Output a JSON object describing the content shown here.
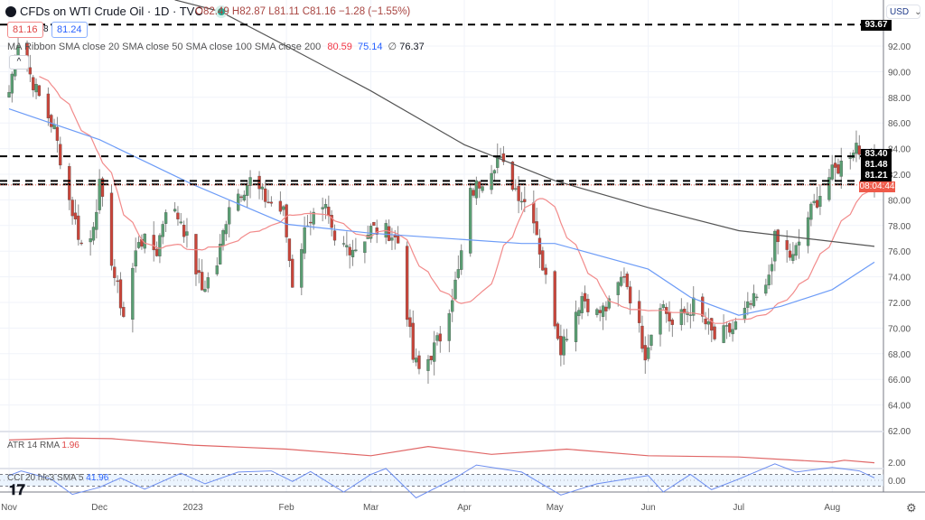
{
  "header": {
    "title": "CFDs on WTI Crude Oil · 1D · TVC",
    "ohlc": "O82.49 H82.87 L81.11 C81.16 −1.28 (−1.55%)",
    "bid": "81.16",
    "spread": "8",
    "ask": "81.24",
    "currency": "USD",
    "collapse_glyph": "^"
  },
  "indicators": {
    "ma_ribbon_label": "MA Ribbon SMA close 20 SMA close 50 SMA close 100 SMA close 200",
    "sma20_value": "80.59",
    "sma50_value": "75.14",
    "sma100_value": "∅",
    "sma200_value": "76.37",
    "atr_label": "ATR 14 RMA",
    "atr_value": "1.96",
    "cci_label": "CCI 20 hlc3 SMA 5",
    "cci_value": "41.96"
  },
  "price_axis": {
    "ticks": [
      "92.00",
      "90.00",
      "88.00",
      "86.00",
      "84.00",
      "82.00",
      "80.00",
      "78.00",
      "76.00",
      "74.00",
      "72.00",
      "70.00",
      "68.00",
      "66.00",
      "64.00",
      "62.00"
    ],
    "line_labels": [
      "93.67",
      "83.40",
      "81.48",
      "81.21"
    ],
    "countdown": "08:04:44",
    "atr_tick": "2.00",
    "cci_tick": "0.00"
  },
  "time_axis": {
    "labels": [
      "Nov",
      "Dec",
      "2023",
      "Feb",
      "Mar",
      "Apr",
      "May",
      "Jun",
      "Jul",
      "Aug"
    ]
  },
  "colors": {
    "up": "#5a9e73",
    "down": "#c9453a",
    "sma20": "#f28b8b",
    "sma50": "#6d9cf7",
    "sma200": "#555555",
    "atr": "#e06666",
    "cci": "#6d8ef0",
    "countdown_bg": "#ef5a4a"
  },
  "logo_text": "TV",
  "chart_data": {
    "type": "candlestick",
    "horizontal_lines": [
      93.67,
      83.4,
      81.48,
      81.21
    ],
    "ylim": [
      62,
      95.5
    ],
    "closes": [
      [
        "2022-11-01",
        88.4
      ],
      [
        "2022-11-04",
        92.4
      ],
      [
        "2022-11-10",
        88.5
      ],
      [
        "2022-11-16",
        85.5
      ],
      [
        "2022-11-21",
        80
      ],
      [
        "2022-11-25",
        76.5
      ],
      [
        "2022-11-28",
        77
      ],
      [
        "2022-12-01",
        81
      ],
      [
        "2022-12-06",
        74
      ],
      [
        "2022-12-09",
        71
      ],
      [
        "2022-12-14",
        77
      ],
      [
        "2022-12-20",
        76
      ],
      [
        "2022-12-23",
        79.5
      ],
      [
        "2022-12-28",
        78.5
      ],
      [
        "2023-01-04",
        73
      ],
      [
        "2023-01-09",
        75
      ],
      [
        "2023-01-13",
        79.8
      ],
      [
        "2023-01-20",
        81.5
      ],
      [
        "2023-01-25",
        80.1
      ],
      [
        "2023-01-31",
        79
      ],
      [
        "2023-02-03",
        73.5
      ],
      [
        "2023-02-08",
        78.5
      ],
      [
        "2023-02-14",
        79
      ],
      [
        "2023-02-17",
        76.5
      ],
      [
        "2023-02-24",
        76.3
      ],
      [
        "2023-03-01",
        77.7
      ],
      [
        "2023-03-07",
        77.5
      ],
      [
        "2023-03-10",
        76.7
      ],
      [
        "2023-03-15",
        67.6
      ],
      [
        "2023-03-17",
        66.7
      ],
      [
        "2023-03-20",
        67.6
      ],
      [
        "2023-03-24",
        69.3
      ],
      [
        "2023-03-30",
        74.3
      ],
      [
        "2023-04-03",
        80.4
      ],
      [
        "2023-04-12",
        83.3
      ],
      [
        "2023-04-18",
        80.9
      ],
      [
        "2023-04-24",
        78.8
      ],
      [
        "2023-04-27",
        74.8
      ],
      [
        "2023-05-03",
        68.6
      ],
      [
        "2023-05-10",
        72.5
      ],
      [
        "2023-05-15",
        71.1
      ],
      [
        "2023-05-19",
        71.7
      ],
      [
        "2023-05-24",
        74.3
      ],
      [
        "2023-05-31",
        68.1
      ],
      [
        "2023-06-05",
        72.2
      ],
      [
        "2023-06-09",
        70.2
      ],
      [
        "2023-06-16",
        71.8
      ],
      [
        "2023-06-23",
        69.2
      ],
      [
        "2023-06-29",
        69.9
      ],
      [
        "2023-07-05",
        71.8
      ],
      [
        "2023-07-10",
        72.9
      ],
      [
        "2023-07-13",
        76.9
      ],
      [
        "2023-07-19",
        75.4
      ],
      [
        "2023-07-24",
        78.7
      ],
      [
        "2023-07-31",
        81.8
      ],
      [
        "2023-08-04",
        82.8
      ],
      [
        "2023-08-09",
        84.4
      ],
      [
        "2023-08-11",
        83.2
      ],
      [
        "2023-08-14",
        82.5
      ],
      [
        "2023-08-15",
        81.16
      ]
    ],
    "sma50": [
      [
        "2022-11-01",
        87.1
      ],
      [
        "2022-12-01",
        84.7
      ],
      [
        "2023-01-01",
        81.2
      ],
      [
        "2023-02-01",
        78.1
      ],
      [
        "2023-03-01",
        77.4
      ],
      [
        "2023-04-01",
        76.9
      ],
      [
        "2023-04-20",
        76.6
      ],
      [
        "2023-05-01",
        76.6
      ],
      [
        "2023-06-01",
        74.6
      ],
      [
        "2023-06-15",
        72.4
      ],
      [
        "2023-07-01",
        71.0
      ],
      [
        "2023-07-15",
        71.7
      ],
      [
        "2023-08-01",
        73.0
      ],
      [
        "2023-08-15",
        75.14
      ]
    ],
    "sma200": [
      [
        "2022-12-26",
        95.6
      ],
      [
        "2023-01-10",
        94.7
      ],
      [
        "2023-02-01",
        92.0
      ],
      [
        "2023-03-01",
        88.5
      ],
      [
        "2023-04-01",
        84.3
      ],
      [
        "2023-05-01",
        81.5
      ],
      [
        "2023-06-01",
        79.4
      ],
      [
        "2023-07-01",
        77.6
      ],
      [
        "2023-08-15",
        76.37
      ]
    ],
    "atr": [
      [
        "2022-11-01",
        3.7
      ],
      [
        "2022-11-20",
        3.85
      ],
      [
        "2022-12-05",
        3.8
      ],
      [
        "2023-01-01",
        3.3
      ],
      [
        "2023-02-01",
        3.0
      ],
      [
        "2023-03-01",
        2.5
      ],
      [
        "2023-03-20",
        3.2
      ],
      [
        "2023-04-10",
        2.6
      ],
      [
        "2023-05-05",
        3.0
      ],
      [
        "2023-06-01",
        2.5
      ],
      [
        "2023-07-01",
        2.4
      ],
      [
        "2023-08-01",
        2.0
      ],
      [
        "2023-08-05",
        2.15
      ],
      [
        "2023-08-15",
        1.96
      ]
    ],
    "cci": [
      [
        "2022-11-01",
        80
      ],
      [
        "2022-11-05",
        160
      ],
      [
        "2022-11-15",
        20
      ],
      [
        "2022-11-22",
        -240
      ],
      [
        "2022-12-01",
        -120
      ],
      [
        "2022-12-08",
        40
      ],
      [
        "2022-12-16",
        -150
      ],
      [
        "2022-12-28",
        120
      ],
      [
        "2023-01-05",
        -60
      ],
      [
        "2023-01-16",
        140
      ],
      [
        "2023-01-27",
        160
      ],
      [
        "2023-02-03",
        -20
      ],
      [
        "2023-02-09",
        150
      ],
      [
        "2023-02-20",
        -200
      ],
      [
        "2023-03-01",
        100
      ],
      [
        "2023-03-06",
        200
      ],
      [
        "2023-03-16",
        -300
      ],
      [
        "2023-03-29",
        40
      ],
      [
        "2023-04-05",
        260
      ],
      [
        "2023-04-20",
        140
      ],
      [
        "2023-05-03",
        -250
      ],
      [
        "2023-05-15",
        -60
      ],
      [
        "2023-06-01",
        80
      ],
      [
        "2023-06-06",
        -200
      ],
      [
        "2023-06-15",
        100
      ],
      [
        "2023-06-22",
        -160
      ],
      [
        "2023-07-01",
        20
      ],
      [
        "2023-07-13",
        280
      ],
      [
        "2023-07-20",
        140
      ],
      [
        "2023-08-01",
        220
      ],
      [
        "2023-08-10",
        160
      ],
      [
        "2023-08-15",
        41.96
      ]
    ]
  }
}
